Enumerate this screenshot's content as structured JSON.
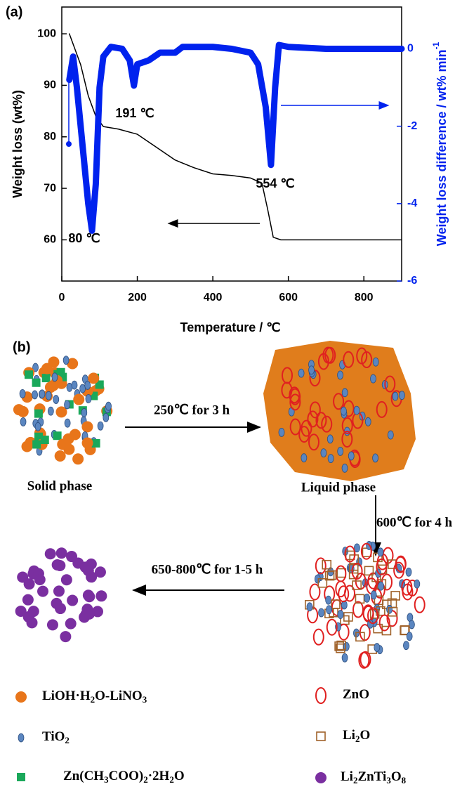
{
  "chart_data": {
    "type": "line",
    "panel_label": "(a)",
    "x_label": "Temperature / ℃",
    "y_label": "Weight loss (wt%)",
    "y2_label": [
      "Weight loss difference / wt% min",
      "-1"
    ],
    "xlim": [
      0,
      900
    ],
    "xticks": [
      0,
      200,
      400,
      600,
      800
    ],
    "ylim": [
      52,
      105.2
    ],
    "yticks": [
      60,
      70,
      80,
      90,
      100
    ],
    "y2lim": [
      -6,
      1.08
    ],
    "y2ticks": [
      0,
      -2,
      -4,
      -6
    ],
    "annotations": [
      "80 ℃",
      "191 ℃",
      "554 ℃"
    ],
    "series": [
      {
        "color": "#000000",
        "axis": "y",
        "x": [
          20,
          30,
          50,
          70,
          90,
          110,
          150,
          200,
          250,
          300,
          350,
          400,
          450,
          500,
          530,
          545,
          560,
          580,
          700,
          900
        ],
        "values": [
          100,
          98,
          94,
          88,
          84,
          82,
          81.5,
          80.5,
          78,
          75.5,
          74,
          72.8,
          72.5,
          72,
          71,
          66,
          60.5,
          60,
          60,
          60
        ]
      },
      {
        "color": "#0022ee",
        "axis": "y2",
        "x": [
          20,
          30,
          40,
          55,
          70,
          80,
          90,
          100,
          110,
          130,
          160,
          180,
          191,
          200,
          230,
          260,
          300,
          320,
          400,
          450,
          500,
          520,
          540,
          554,
          565,
          575,
          600,
          700,
          800,
          900
        ],
        "values": [
          -0.8,
          -0.2,
          -1.0,
          -2.5,
          -4.0,
          -4.7,
          -3.5,
          -1.0,
          -0.2,
          0.05,
          0,
          -0.3,
          -0.95,
          -0.4,
          -0.3,
          -0.1,
          -0.1,
          0.05,
          0.05,
          0,
          -0.1,
          -0.4,
          -1.5,
          -3.0,
          -1.0,
          0.1,
          0.05,
          0,
          0,
          0
        ]
      }
    ]
  },
  "diagram": {
    "panel_label": "(b)",
    "phases": [
      "Solid phase",
      "Liquid phase"
    ],
    "steps": [
      "250℃ for 3 h",
      "600℃ for 4 h",
      "650-800℃ for 1-5 h"
    ],
    "legend": [
      {
        "parts": [
          "LiOH·H",
          "2",
          "O-LiNO",
          "3"
        ]
      },
      {
        "parts": [
          "TiO",
          "2"
        ]
      },
      {
        "parts": [
          "Zn(CH",
          "3",
          "COO)",
          "2",
          "·2H",
          "2",
          "O"
        ]
      },
      {
        "parts": [
          "ZnO"
        ]
      },
      {
        "parts": [
          "Li",
          "2",
          "O"
        ]
      },
      {
        "parts": [
          "Li",
          "2",
          "ZnTi",
          "3",
          "O",
          "8"
        ]
      }
    ]
  }
}
